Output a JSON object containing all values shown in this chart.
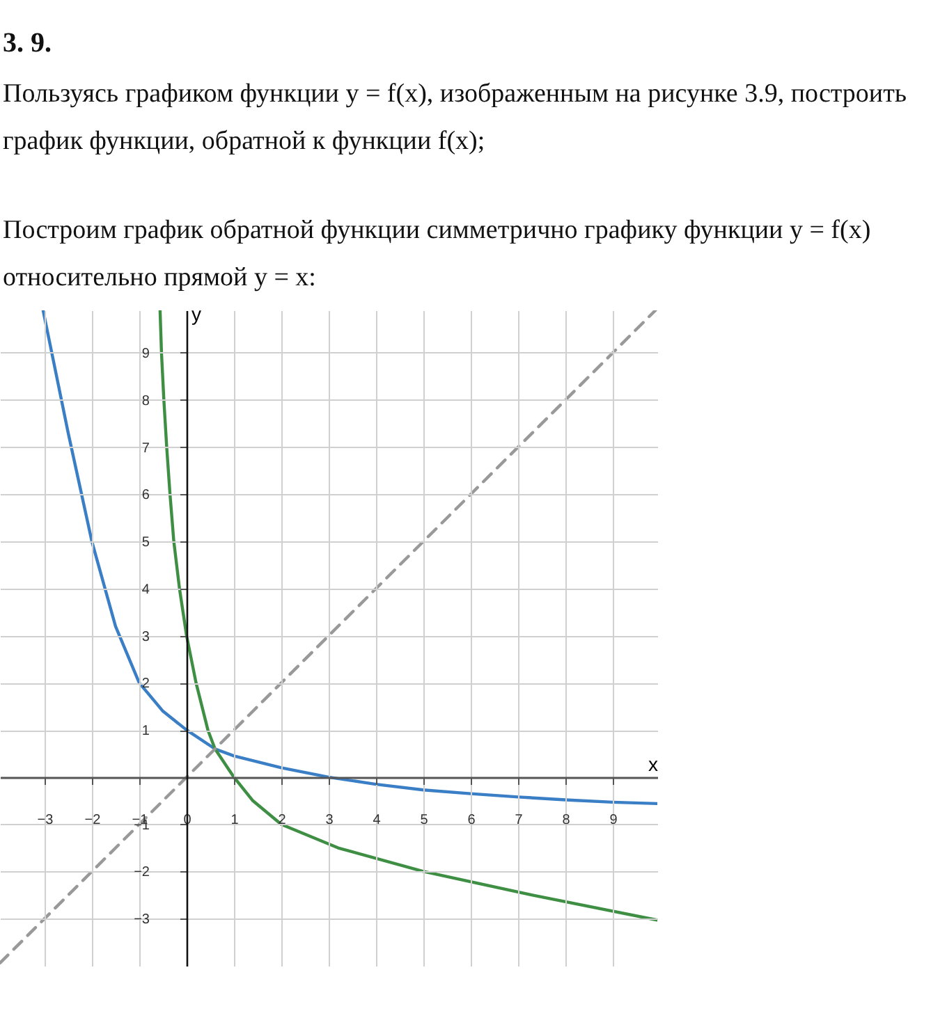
{
  "chart_data": {
    "type": "line",
    "title": "3. 9.",
    "subtitle": "Пользуясь графиком функции y = f(x), изображенным на рисунке 3.9, построить график функции, обратной к функции f(x);",
    "annotations": [
      "Построим график обратной функции симметрично графику функции y = f(x) относительно прямой y = x:"
    ],
    "xlabel": "x",
    "ylabel": "y",
    "xlim": [
      -3.94,
      9.94
    ],
    "ylim": [
      -4,
      9.9
    ],
    "xticks": [
      -3,
      -2,
      -1,
      0,
      1,
      2,
      3,
      4,
      5,
      6,
      7,
      8,
      9
    ],
    "yticks": [
      -3,
      -2,
      -1,
      1,
      2,
      3,
      4,
      5,
      6,
      7,
      8,
      9
    ],
    "grid": true,
    "legend": false,
    "marker": "none",
    "series": [
      {
        "color": "#3a7ec6",
        "line_style": "solid",
        "x": [
          -3.03,
          -2.5,
          -2,
          -1.5,
          -1,
          -0.5,
          0,
          0.6,
          1,
          2,
          3,
          4,
          5,
          6,
          7,
          8,
          9,
          9.94
        ],
        "values": [
          9.9,
          7.3,
          5,
          3.2,
          2,
          1.4,
          1,
          0.6,
          0.45,
          0.2,
          0,
          -0.15,
          -0.27,
          -0.35,
          -0.42,
          -0.48,
          -0.53,
          -0.56
        ]
      },
      {
        "color": "#3e8f43",
        "line_style": "solid",
        "x": [
          -0.56,
          -0.53,
          -0.48,
          -0.42,
          -0.35,
          -0.27,
          -0.15,
          0,
          0.2,
          0.45,
          0.6,
          1,
          1.4,
          2,
          3.2,
          5,
          7.3,
          9.94
        ],
        "values": [
          9.9,
          9,
          8,
          7,
          6,
          5,
          4,
          3,
          2,
          1,
          0.6,
          0,
          -0.5,
          -1,
          -1.5,
          -2,
          -2.5,
          -3.03
        ]
      },
      {
        "color": "#999999",
        "line_style": "dashed",
        "x": [
          -3.94,
          9.9
        ],
        "values": [
          -3.94,
          9.9
        ]
      }
    ]
  }
}
